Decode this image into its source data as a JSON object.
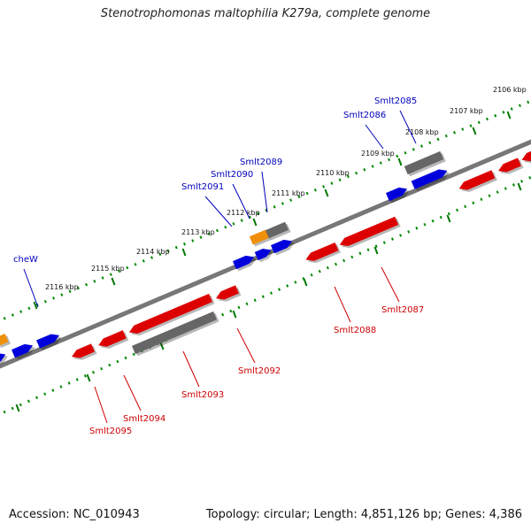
{
  "title": "Stenotrophomonas maltophilia K279a, complete genome",
  "accession": "Accession: NC_010943",
  "stats": "Topology: circular; Length: 4,851,126 bp; Genes: 4,386",
  "kbp_ticks": [
    "2106 kbp",
    "2107 kbp",
    "2108 kbp",
    "2109 kbp",
    "2110 kbp",
    "2111 kbp",
    "2112 kbp",
    "2113 kbp",
    "2114 kbp",
    "2115 kbp",
    "2116 kbp"
  ],
  "gene_labels_top": [
    "Smlt2085",
    "Smlt2086",
    "Smlt2089",
    "Smlt2090",
    "Smlt2091",
    "cheW"
  ],
  "gene_labels_bottom": [
    "Smlt2087",
    "Smlt2088",
    "Smlt2092",
    "Smlt2093",
    "Smlt2094",
    "Smlt2095"
  ],
  "colors": {
    "forward_cds": "#0000dd",
    "reverse_cds": "#dd0000",
    "gray_gene": "#666666",
    "orange_gene": "#f0900a",
    "label_top": "#0000bb",
    "label_bottom": "#cc0000",
    "tick_major": "#007700"
  }
}
